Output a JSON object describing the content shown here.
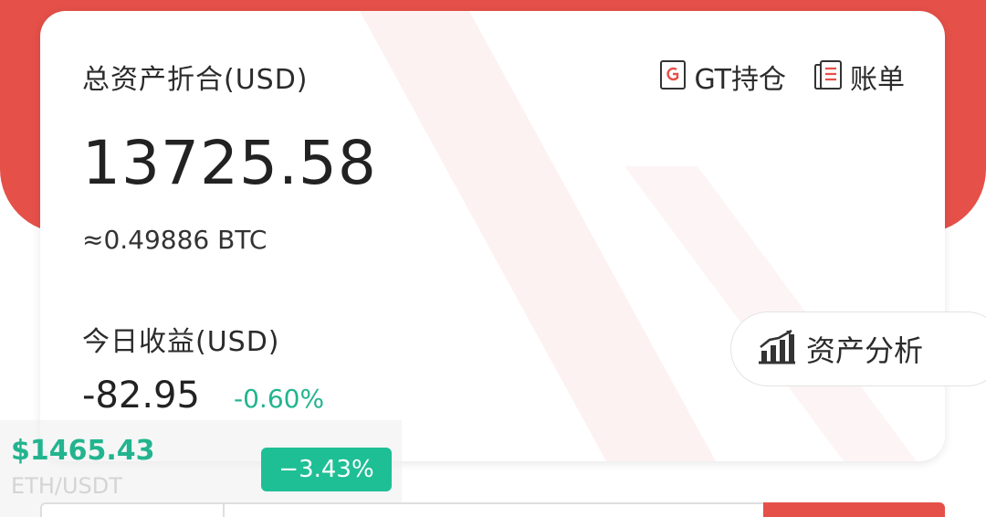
{
  "asset_card": {
    "total_label": "总资产折合(USD)",
    "total_value": "13725.58",
    "btc_value": "≈0.49886 BTC",
    "today_label": "今日收益(USD)",
    "today_value": "-82.95",
    "today_pct": "-0.60%"
  },
  "actions": {
    "gt_holdings": "GT持仓",
    "bill": "账单",
    "analysis": "资产分析"
  },
  "ticker": {
    "price": "$1465.43",
    "pair": "ETH/USDT",
    "change": "−3.43%"
  },
  "colors": {
    "brand_red": "#e55049",
    "positive_green": "#22b48f",
    "badge_green": "#1fbf96"
  },
  "icons": {
    "gt": "gt-holdings-icon",
    "bill": "bill-icon",
    "analysis": "chart-icon"
  }
}
